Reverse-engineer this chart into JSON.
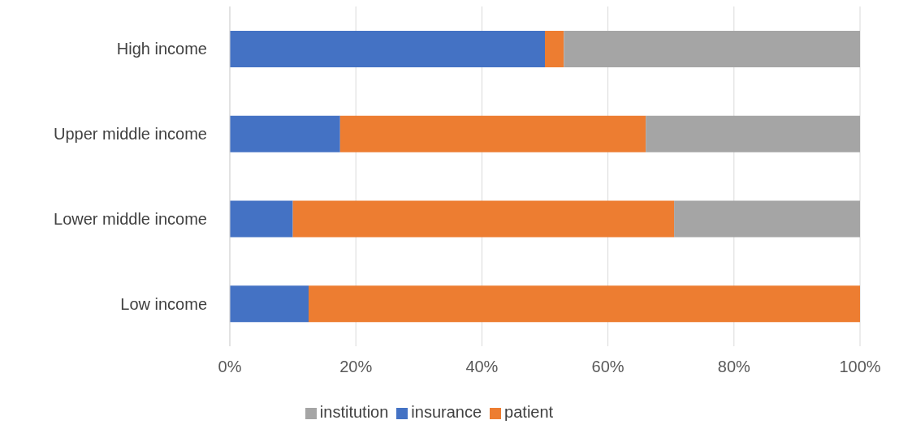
{
  "chart_data": {
    "type": "bar",
    "orientation": "horizontal",
    "stacked": true,
    "categories": [
      "High income",
      "Upper middle income",
      "Lower middle income",
      "Low income"
    ],
    "series": [
      {
        "name": "insurance",
        "color": "#4472c4",
        "values": [
          50,
          17.5,
          10,
          12.5
        ]
      },
      {
        "name": "patient",
        "color": "#ed7d31",
        "values": [
          3,
          48.5,
          60.5,
          87.5
        ]
      },
      {
        "name": "institution",
        "color": "#a5a5a5",
        "values": [
          47,
          34,
          29.5,
          0
        ]
      }
    ],
    "xlim": [
      0,
      100
    ],
    "xticks": [
      {
        "value": 0,
        "label": "0%"
      },
      {
        "value": 20,
        "label": "20%"
      },
      {
        "value": 40,
        "label": "40%"
      },
      {
        "value": 60,
        "label": "60%"
      },
      {
        "value": 80,
        "label": "80%"
      },
      {
        "value": 100,
        "label": "100%"
      }
    ],
    "grid": "x",
    "legend": "bottom"
  }
}
